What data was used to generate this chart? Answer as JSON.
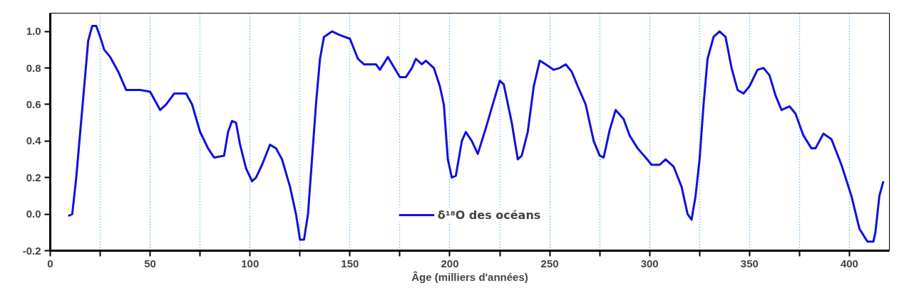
{
  "chart_data": {
    "type": "line",
    "xlabel": "Âge (milliers d'années)",
    "xlim": [
      0,
      420
    ],
    "ylim": [
      -0.2,
      1.1
    ],
    "xticks": [
      0,
      50,
      100,
      150,
      200,
      250,
      300,
      350,
      400,
      {
        "value": 25,
        "label": null
      },
      {
        "value": 75,
        "label": null
      },
      {
        "value": 125,
        "label": null
      },
      {
        "value": 175,
        "label": null
      },
      {
        "value": 225,
        "label": null
      },
      {
        "value": 275,
        "label": null
      },
      {
        "value": 325,
        "label": null
      },
      {
        "value": 375,
        "label": null
      }
    ],
    "yticks": [
      {
        "value": -0.2,
        "label": "-0.2"
      },
      {
        "value": 0,
        "label": "0.0"
      },
      {
        "value": 0.2,
        "label": "0.2"
      },
      {
        "value": 0.4,
        "label": "0.4"
      },
      {
        "value": 0.6,
        "label": "0.6"
      },
      {
        "value": 0.8,
        "label": "0.8"
      },
      {
        "value": 1.0,
        "label": "1.0"
      }
    ],
    "grid": "x",
    "legend": "bottom",
    "line_style": "solid",
    "marker": "none",
    "series": [
      {
        "name": "δ¹⁸O des océans",
        "color": "#1010e0",
        "x": [
          9,
          11,
          13,
          15,
          17,
          19,
          21,
          23,
          25,
          27,
          30,
          34,
          38,
          45,
          50,
          52,
          55,
          58,
          62,
          68,
          71,
          75,
          79,
          82,
          87,
          89,
          91,
          93,
          95,
          98,
          101,
          103,
          106,
          110,
          113,
          116,
          120,
          123,
          125,
          127,
          129,
          131,
          133,
          135,
          137,
          141,
          145,
          150,
          154,
          157,
          163,
          165,
          169,
          175,
          178,
          181,
          183,
          186,
          188,
          192,
          195,
          197,
          199,
          201,
          203,
          206,
          208,
          211,
          214,
          218,
          222,
          225,
          227,
          231,
          234,
          236,
          239,
          242,
          245,
          248,
          252,
          255,
          258,
          261,
          264,
          268,
          272,
          275,
          277,
          280,
          283,
          287,
          290,
          294,
          298,
          301,
          305,
          308,
          312,
          316,
          319,
          321,
          323,
          325,
          327,
          329,
          332,
          335,
          338,
          341,
          344,
          347,
          350,
          354,
          357,
          360,
          363,
          366,
          370,
          373,
          377,
          381,
          383,
          387,
          391,
          396,
          401,
          405,
          409,
          412,
          413,
          415,
          417
        ],
        "values": [
          -0.01,
          0.0,
          0.2,
          0.45,
          0.7,
          0.95,
          1.03,
          1.03,
          0.97,
          0.9,
          0.86,
          0.78,
          0.68,
          0.68,
          0.67,
          0.63,
          0.57,
          0.6,
          0.66,
          0.66,
          0.6,
          0.45,
          0.36,
          0.31,
          0.32,
          0.45,
          0.51,
          0.5,
          0.38,
          0.25,
          0.18,
          0.2,
          0.27,
          0.38,
          0.36,
          0.3,
          0.15,
          0.0,
          -0.14,
          -0.14,
          0.0,
          0.3,
          0.6,
          0.85,
          0.97,
          1.0,
          0.98,
          0.96,
          0.85,
          0.82,
          0.82,
          0.79,
          0.86,
          0.75,
          0.75,
          0.8,
          0.85,
          0.82,
          0.84,
          0.8,
          0.7,
          0.6,
          0.3,
          0.2,
          0.21,
          0.4,
          0.45,
          0.4,
          0.33,
          0.47,
          0.62,
          0.73,
          0.71,
          0.5,
          0.3,
          0.32,
          0.45,
          0.7,
          0.84,
          0.82,
          0.79,
          0.8,
          0.82,
          0.78,
          0.7,
          0.6,
          0.4,
          0.32,
          0.31,
          0.46,
          0.57,
          0.52,
          0.43,
          0.36,
          0.31,
          0.27,
          0.27,
          0.3,
          0.26,
          0.15,
          0.0,
          -0.03,
          0.1,
          0.3,
          0.6,
          0.85,
          0.97,
          1.0,
          0.97,
          0.8,
          0.68,
          0.66,
          0.7,
          0.79,
          0.8,
          0.76,
          0.65,
          0.57,
          0.59,
          0.55,
          0.43,
          0.36,
          0.36,
          0.44,
          0.41,
          0.27,
          0.1,
          -0.08,
          -0.15,
          -0.15,
          -0.1,
          0.1,
          0.18
        ]
      }
    ]
  }
}
